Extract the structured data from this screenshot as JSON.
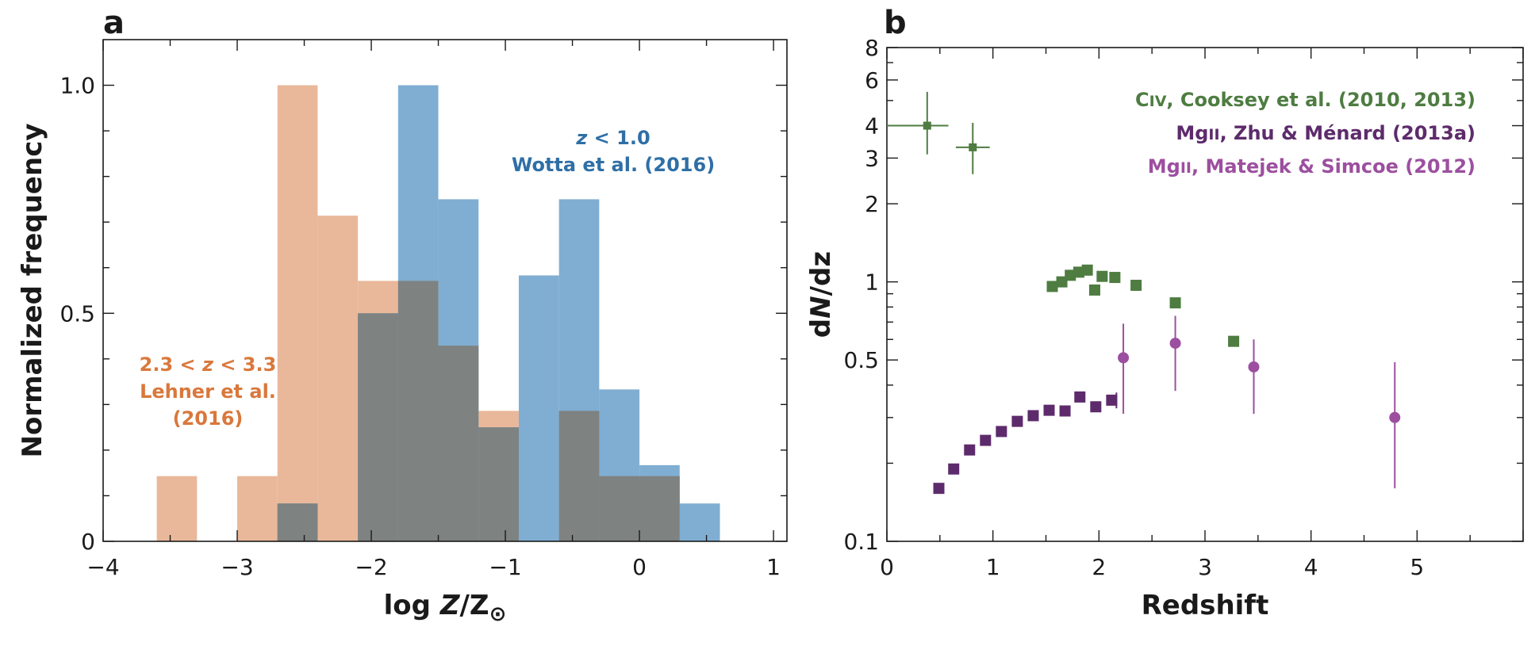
{
  "chart_data": [
    {
      "panel": "a",
      "type": "bar",
      "subtype": "histogram",
      "xlabel": "log Z/Z⊙",
      "ylabel": "Normalized frequency",
      "xlim": [
        -4,
        1.1
      ],
      "ylim": [
        0,
        1.1
      ],
      "xticks": [
        -4,
        -3,
        -2,
        -1,
        0,
        1
      ],
      "xtick_labels": [
        "−4",
        "−3",
        "−2",
        "−1",
        "0",
        "1"
      ],
      "yticks": [
        0,
        0.5,
        1.0
      ],
      "ytick_labels": [
        "0",
        "0.5",
        "1.0"
      ],
      "bin_width": 0.3,
      "series": [
        {
          "name": "2.3 < z < 3.3 Lehner et al. (2016)",
          "label_lines": [
            "2.3 < z < 3.3",
            "Lehner et al.",
            "(2016)"
          ],
          "color": "#e9b89a",
          "bins": [
            {
              "x0": -3.6,
              "value": 0.143
            },
            {
              "x0": -3.0,
              "value": 0.143
            },
            {
              "x0": -2.7,
              "value": 1.0
            },
            {
              "x0": -2.4,
              "value": 0.714
            },
            {
              "x0": -2.1,
              "value": 0.571
            },
            {
              "x0": -1.8,
              "value": 0.571
            },
            {
              "x0": -1.5,
              "value": 0.429
            },
            {
              "x0": -1.2,
              "value": 0.286
            },
            {
              "x0": -0.6,
              "value": 0.286
            },
            {
              "x0": -0.3,
              "value": 0.143
            },
            {
              "x0": 0.0,
              "value": 0.143
            }
          ]
        },
        {
          "name": "z < 1.0 Wotta et al. (2016)",
          "label_lines": [
            "z < 1.0",
            "Wotta et al. (2016)"
          ],
          "color": "#80aed2",
          "bins": [
            {
              "x0": -2.7,
              "value": 0.083
            },
            {
              "x0": -2.1,
              "value": 0.5
            },
            {
              "x0": -1.8,
              "value": 1.0
            },
            {
              "x0": -1.5,
              "value": 0.75
            },
            {
              "x0": -1.2,
              "value": 0.25
            },
            {
              "x0": -0.9,
              "value": 0.583
            },
            {
              "x0": -0.6,
              "value": 0.75
            },
            {
              "x0": -0.3,
              "value": 0.333
            },
            {
              "x0": 0.0,
              "value": 0.167
            },
            {
              "x0": 0.3,
              "value": 0.083
            }
          ]
        }
      ],
      "overlap_color": "#7e8281"
    },
    {
      "panel": "b",
      "type": "scatter",
      "yscale": "log",
      "xlabel": "Redshift",
      "ylabel": "dN/dz",
      "xlim": [
        0,
        6
      ],
      "ylim": [
        0.1,
        8
      ],
      "xticks": [
        0,
        1,
        2,
        3,
        4,
        5
      ],
      "xtick_labels": [
        "0",
        "1",
        "2",
        "3",
        "4",
        "5"
      ],
      "yticks": [
        0.1,
        0.5,
        1,
        2,
        3,
        4,
        6,
        8
      ],
      "ytick_labels": [
        "0.1",
        "0.5",
        "1",
        "2",
        "3",
        "4",
        "6",
        "8"
      ],
      "series": [
        {
          "name": "CIV, Cooksey et al. (2010, 2013)",
          "label_prefix": "C",
          "label_ion": "IV",
          "label_rest": ", Cooksey et al. (2010, 2013)",
          "color": "#4e7c41",
          "marker": "square",
          "points": [
            {
              "x": 1.56,
              "y": 0.96
            },
            {
              "x": 1.65,
              "y": 1.0
            },
            {
              "x": 1.73,
              "y": 1.06
            },
            {
              "x": 1.81,
              "y": 1.09
            },
            {
              "x": 1.89,
              "y": 1.11
            },
            {
              "x": 1.96,
              "y": 0.93
            },
            {
              "x": 2.03,
              "y": 1.05
            },
            {
              "x": 2.15,
              "y": 1.04
            },
            {
              "x": 2.35,
              "y": 0.97
            },
            {
              "x": 2.72,
              "y": 0.83
            },
            {
              "x": 3.27,
              "y": 0.59
            }
          ],
          "errorbar_points": [
            {
              "x": 0.38,
              "y": 4.0,
              "xmin": 0.0,
              "xmax": 0.58,
              "ymin": 3.1,
              "ymax": 5.4
            },
            {
              "x": 0.81,
              "y": 3.3,
              "xmin": 0.65,
              "xmax": 0.97,
              "ymin": 2.6,
              "ymax": 4.1
            }
          ]
        },
        {
          "name": "MgII, Zhu & Ménard (2013a)",
          "label_prefix": "Mg",
          "label_ion": "II",
          "label_rest": ", Zhu & Ménard (2013a)",
          "color": "#5d2b6b",
          "marker": "square",
          "points": [
            {
              "x": 0.49,
              "y": 0.16
            },
            {
              "x": 0.63,
              "y": 0.19
            },
            {
              "x": 0.78,
              "y": 0.225
            },
            {
              "x": 0.93,
              "y": 0.245
            },
            {
              "x": 1.08,
              "y": 0.265
            },
            {
              "x": 1.23,
              "y": 0.29
            },
            {
              "x": 1.38,
              "y": 0.305
            },
            {
              "x": 1.53,
              "y": 0.32
            },
            {
              "x": 1.68,
              "y": 0.318
            },
            {
              "x": 1.82,
              "y": 0.36
            },
            {
              "x": 1.97,
              "y": 0.33
            },
            {
              "x": 2.12,
              "y": 0.35
            }
          ]
        },
        {
          "name": "MgII, Matejek & Simcoe (2012)",
          "label_prefix": "Mg",
          "label_ion": "II",
          "label_rest": ", Matejek & Simcoe (2012)",
          "color": "#9c4f9f",
          "marker": "circle",
          "points": [
            {
              "x": 2.23,
              "y": 0.51,
              "ymin": 0.31,
              "ymax": 0.69
            },
            {
              "x": 2.72,
              "y": 0.58,
              "ymin": 0.38,
              "ymax": 0.74
            },
            {
              "x": 3.46,
              "y": 0.47,
              "ymin": 0.31,
              "ymax": 0.6
            },
            {
              "x": 4.79,
              "y": 0.3,
              "ymin": 0.16,
              "ymax": 0.49
            }
          ]
        }
      ]
    }
  ]
}
